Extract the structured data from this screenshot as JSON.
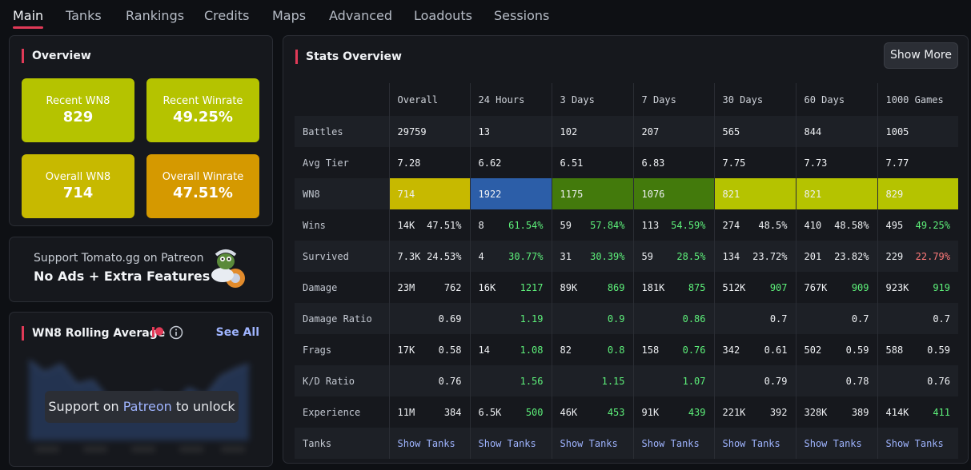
{
  "tabs": [
    "Main",
    "Tanks",
    "Rankings",
    "Credits",
    "Maps",
    "Advanced",
    "Loadouts",
    "Sessions"
  ],
  "overview": {
    "title": "Overview",
    "tiles": [
      {
        "label": "Recent WN8",
        "value": "829",
        "color": "#b5c300"
      },
      {
        "label": "Recent Winrate",
        "value": "49.25%",
        "color": "#b5c300"
      },
      {
        "label": "Overall WN8",
        "value": "714",
        "color": "#c7b900"
      },
      {
        "label": "Overall Winrate",
        "value": "47.51%",
        "color": "#d59900"
      }
    ]
  },
  "patreon": {
    "line1": "Support Tomato.gg on Patreon",
    "line2": "No Ads + Extra Features"
  },
  "rolling": {
    "title": "WN8 Rolling Average",
    "see_all": "See All",
    "unlock_pre": "Support on",
    "unlock_link": "Patreon",
    "unlock_post": "to unlock"
  },
  "stats": {
    "title": "Stats Overview",
    "show_more": "Show More",
    "columns": [
      "Overall",
      "24 Hours",
      "3 Days",
      "7 Days",
      "30 Days",
      "60 Days",
      "1000 Games"
    ],
    "colors": {
      "green": "#5df07a",
      "red": "#ff7a7a"
    },
    "rows": [
      {
        "label": "Battles",
        "cells": [
          [
            "29759",
            ""
          ],
          [
            "13",
            ""
          ],
          [
            "102",
            ""
          ],
          [
            "207",
            ""
          ],
          [
            "565",
            ""
          ],
          [
            "844",
            ""
          ],
          [
            "1005",
            ""
          ]
        ]
      },
      {
        "label": "Avg Tier",
        "cells": [
          [
            "7.28",
            ""
          ],
          [
            "6.62",
            ""
          ],
          [
            "6.51",
            ""
          ],
          [
            "6.83",
            ""
          ],
          [
            "7.75",
            ""
          ],
          [
            "7.73",
            ""
          ],
          [
            "7.77",
            ""
          ]
        ]
      },
      {
        "label": "WN8",
        "cells": [
          [
            "714",
            ""
          ],
          [
            "1922",
            ""
          ],
          [
            "1175",
            ""
          ],
          [
            "1076",
            ""
          ],
          [
            "821",
            ""
          ],
          [
            "821",
            ""
          ],
          [
            "829",
            ""
          ]
        ],
        "wn8_colors": [
          "#c7b900",
          "#2c5ea8",
          "#437a0c",
          "#437a0c",
          "#b5c300",
          "#b5c300",
          "#b5c300"
        ]
      },
      {
        "label": "Wins",
        "cells": [
          [
            "14K",
            "47.51%"
          ],
          [
            "8",
            "61.54%"
          ],
          [
            "59",
            "57.84%"
          ],
          [
            "113",
            "54.59%"
          ],
          [
            "274",
            "48.5%"
          ],
          [
            "410",
            "48.58%"
          ],
          [
            "495",
            "49.25%"
          ]
        ],
        "tone": [
          "",
          "g",
          "g",
          "g",
          "",
          "",
          "g"
        ]
      },
      {
        "label": "Survived",
        "cells": [
          [
            "7.3K",
            "24.53%"
          ],
          [
            "4",
            "30.77%"
          ],
          [
            "31",
            "30.39%"
          ],
          [
            "59",
            "28.5%"
          ],
          [
            "134",
            "23.72%"
          ],
          [
            "201",
            "23.82%"
          ],
          [
            "229",
            "22.79%"
          ]
        ],
        "tone": [
          "",
          "g",
          "g",
          "g",
          "",
          "",
          "r"
        ]
      },
      {
        "label": "Damage",
        "cells": [
          [
            "23M",
            "762"
          ],
          [
            "16K",
            "1217"
          ],
          [
            "89K",
            "869"
          ],
          [
            "181K",
            "875"
          ],
          [
            "512K",
            "907"
          ],
          [
            "767K",
            "909"
          ],
          [
            "923K",
            "919"
          ]
        ],
        "tone": [
          "",
          "g",
          "g",
          "g",
          "g",
          "g",
          "g"
        ]
      },
      {
        "label": "Damage Ratio",
        "cells": [
          [
            "",
            "0.69"
          ],
          [
            "",
            "1.19"
          ],
          [
            "",
            "0.9"
          ],
          [
            "",
            "0.86"
          ],
          [
            "",
            "0.7"
          ],
          [
            "",
            "0.7"
          ],
          [
            "",
            "0.7"
          ]
        ],
        "tone": [
          "",
          "g",
          "g",
          "g",
          "",
          "",
          ""
        ]
      },
      {
        "label": "Frags",
        "cells": [
          [
            "17K",
            "0.58"
          ],
          [
            "14",
            "1.08"
          ],
          [
            "82",
            "0.8"
          ],
          [
            "158",
            "0.76"
          ],
          [
            "342",
            "0.61"
          ],
          [
            "502",
            "0.59"
          ],
          [
            "588",
            "0.59"
          ]
        ],
        "tone": [
          "",
          "g",
          "g",
          "g",
          "",
          "",
          ""
        ]
      },
      {
        "label": "K/D Ratio",
        "cells": [
          [
            "",
            "0.76"
          ],
          [
            "",
            "1.56"
          ],
          [
            "",
            "1.15"
          ],
          [
            "",
            "1.07"
          ],
          [
            "",
            "0.79"
          ],
          [
            "",
            "0.78"
          ],
          [
            "",
            "0.76"
          ]
        ],
        "tone": [
          "",
          "g",
          "g",
          "g",
          "",
          "",
          ""
        ]
      },
      {
        "label": "Experience",
        "cells": [
          [
            "11M",
            "384"
          ],
          [
            "6.5K",
            "500"
          ],
          [
            "46K",
            "453"
          ],
          [
            "91K",
            "439"
          ],
          [
            "221K",
            "392"
          ],
          [
            "328K",
            "389"
          ],
          [
            "414K",
            "411"
          ]
        ],
        "tone": [
          "",
          "g",
          "g",
          "g",
          "",
          "",
          "g"
        ]
      },
      {
        "label": "Tanks",
        "link": "Show Tanks"
      }
    ]
  }
}
